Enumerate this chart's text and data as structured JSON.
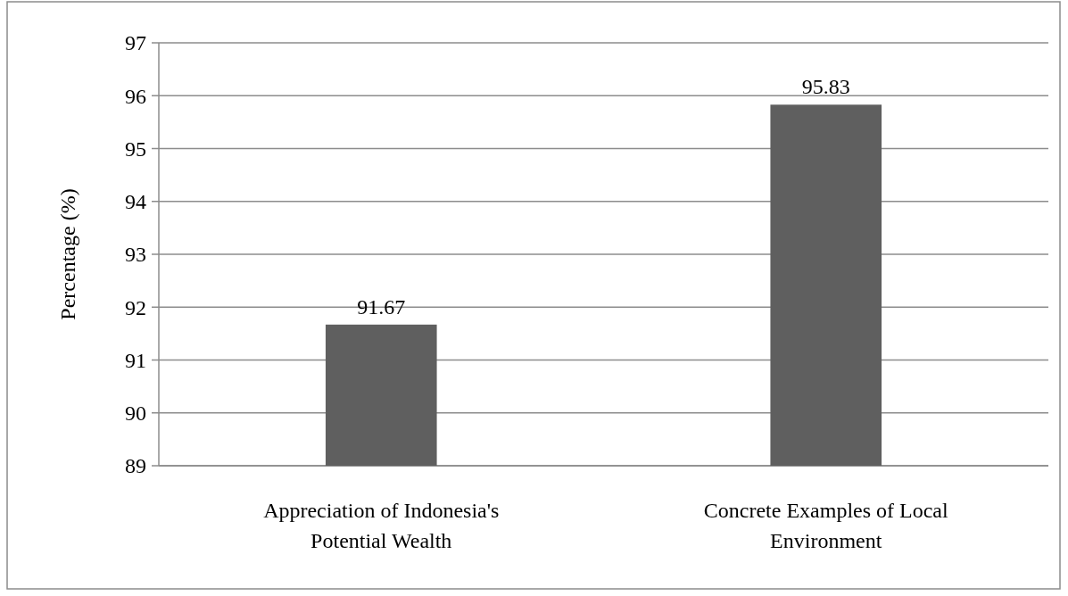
{
  "chart_data": {
    "type": "bar",
    "ylabel": "Percentage (%)",
    "categories": [
      "Appreciation of Indonesia's Potential Wealth",
      "Concrete Examples of Local Environment"
    ],
    "values": [
      91.67,
      95.83
    ],
    "color": "#5f5f5f",
    "data_labels": true,
    "ylim": [
      89,
      97
    ],
    "yticks": [
      89,
      90,
      91,
      92,
      93,
      94,
      95,
      96,
      97
    ],
    "grid": "y"
  }
}
